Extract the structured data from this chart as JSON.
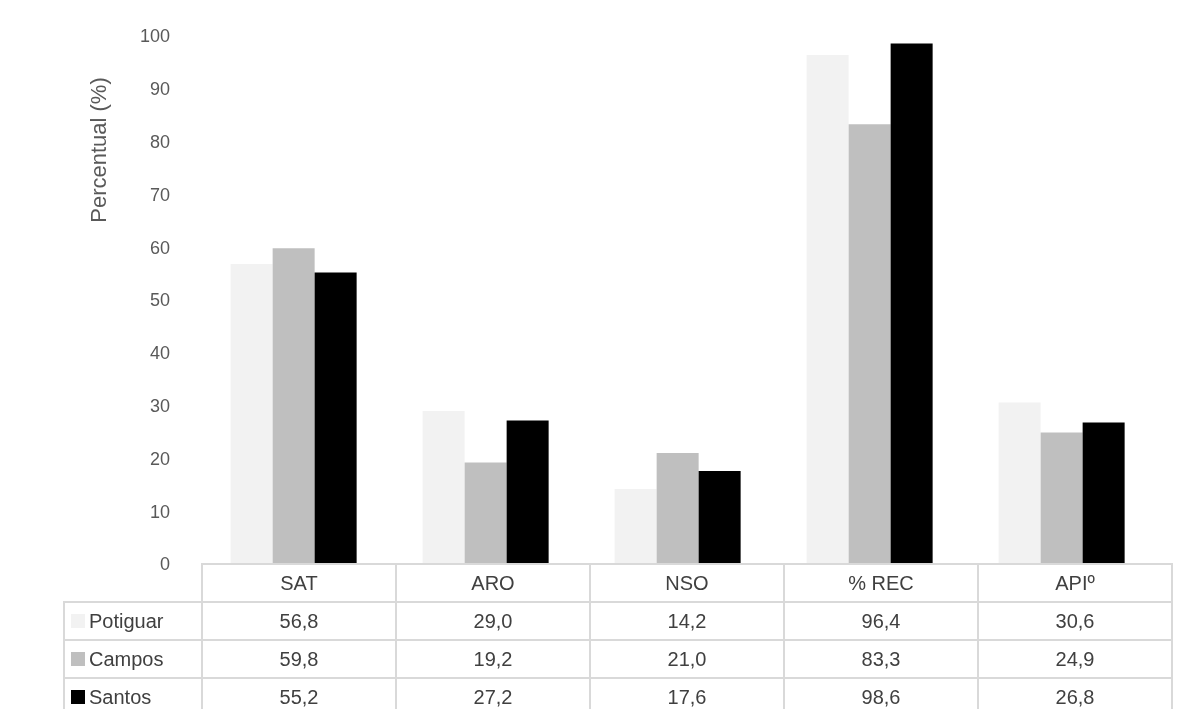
{
  "chart_data": {
    "type": "bar",
    "ylabel": "Percentual (%)",
    "categories": [
      "SAT",
      "ARO",
      "NSO",
      "% REC",
      "APIº"
    ],
    "series": [
      {
        "name": "Potiguar",
        "color": "#f2f2f2",
        "values": [
          56.8,
          29.0,
          14.2,
          96.4,
          30.6
        ],
        "value_labels": [
          "56,8",
          "29,0",
          "14,2",
          "96,4",
          "30,6"
        ]
      },
      {
        "name": "Campos",
        "color": "#bfbfbf",
        "values": [
          59.8,
          19.2,
          21.0,
          83.3,
          24.9
        ],
        "value_labels": [
          "59,8",
          "19,2",
          "21,0",
          "83,3",
          "24,9"
        ]
      },
      {
        "name": "Santos",
        "color": "#000000",
        "values": [
          55.2,
          27.2,
          17.6,
          98.6,
          26.8
        ],
        "value_labels": [
          "55,2",
          "27,2",
          "17,6",
          "98,6",
          "26,8"
        ]
      }
    ],
    "ylim": [
      0,
      100
    ],
    "yticks": [
      0,
      10,
      20,
      30,
      40,
      50,
      60,
      70,
      80,
      90,
      100
    ],
    "grid": false,
    "legend": "bottom"
  }
}
